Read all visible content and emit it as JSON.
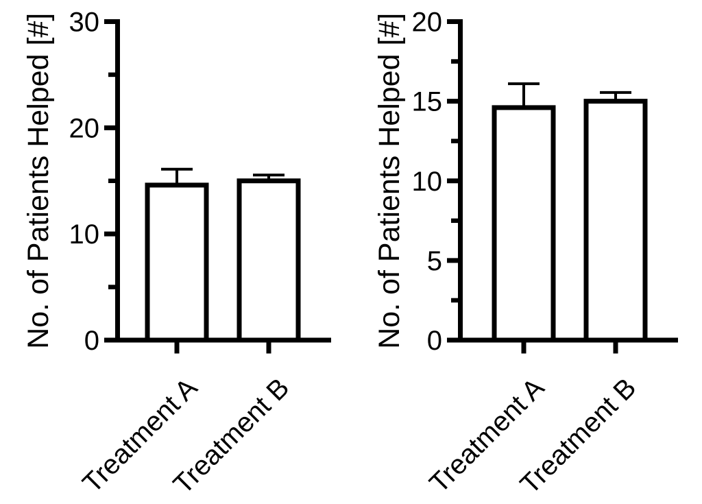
{
  "figure": {
    "background": "#ffffff",
    "ink_color": "#000000",
    "description": "Two side-by-side bar charts of identical data with different y-axis ranges"
  },
  "chart_data": [
    {
      "type": "bar",
      "title": "",
      "categories": [
        "Treatment A",
        "Treatment B"
      ],
      "values": [
        14.6,
        15.0
      ],
      "errors_plus": [
        1.5,
        0.55
      ],
      "error_style": "SEM upper only, capped",
      "xlabel": "",
      "ylabel": "No. of Patients Helped [#]",
      "ylim": [
        0,
        30
      ],
      "yticks_major": [
        0,
        10,
        20,
        30
      ],
      "yticks_minor": [
        5,
        15,
        25
      ],
      "grid": false,
      "legend": false,
      "bar_fill": "#ffffff",
      "bar_stroke": "#000000",
      "category_label_rotation_deg": 45
    },
    {
      "type": "bar",
      "title": "",
      "categories": [
        "Treatment A",
        "Treatment B"
      ],
      "values": [
        14.6,
        15.0
      ],
      "errors_plus": [
        1.5,
        0.55
      ],
      "error_style": "SEM upper only, capped",
      "xlabel": "",
      "ylabel": "No. of Patients Helped [#]",
      "ylim": [
        0,
        20
      ],
      "yticks_major": [
        0,
        5,
        10,
        15,
        20
      ],
      "yticks_minor": [
        2.5,
        7.5,
        12.5,
        17.5
      ],
      "grid": false,
      "legend": false,
      "bar_fill": "#ffffff",
      "bar_stroke": "#000000",
      "category_label_rotation_deg": 45
    }
  ]
}
